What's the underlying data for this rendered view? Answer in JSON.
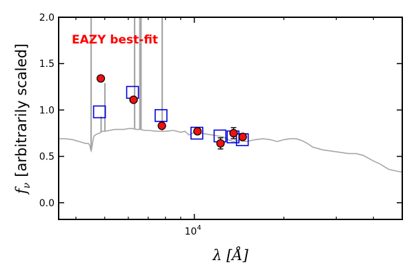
{
  "chart_data": {
    "type": "scatter",
    "annotation": "EAZY best-fit",
    "annotation_color": "#ff0000",
    "xlabel_symbol": "λ",
    "xlabel_unit": "[Å]",
    "ylabel_symbol": "f",
    "ylabel_subscript": "ν",
    "ylabel_text": "[arbitrarily scaled]",
    "xscale": "log",
    "xlim": [
      3500,
      50000
    ],
    "ylim": [
      -0.18,
      2.0
    ],
    "yticks": [
      0.0,
      0.5,
      1.0,
      1.5,
      2.0
    ],
    "ytick_labels": [
      "0.0",
      "0.5",
      "1.0",
      "1.5",
      "2.0"
    ],
    "xtick_major": [
      10000
    ],
    "xtick_major_label_base": "10",
    "xtick_major_label_exp": "4",
    "xtick_minor": [
      4000,
      5000,
      6000,
      7000,
      8000,
      9000,
      20000,
      30000,
      40000
    ],
    "grid": false,
    "model_color": "#a6a6a6",
    "model_continuum": [
      [
        3500,
        0.69
      ],
      [
        3700,
        0.69
      ],
      [
        3900,
        0.68
      ],
      [
        4000,
        0.67
      ],
      [
        4100,
        0.66
      ],
      [
        4200,
        0.65
      ],
      [
        4300,
        0.64
      ],
      [
        4400,
        0.64
      ],
      [
        4450,
        0.62
      ],
      [
        4480,
        0.58
      ],
      [
        4500,
        0.56
      ],
      [
        4530,
        0.6
      ],
      [
        4560,
        0.66
      ],
      [
        4600,
        0.72
      ],
      [
        4700,
        0.74
      ],
      [
        4800,
        0.75
      ],
      [
        4900,
        0.77
      ],
      [
        5000,
        0.77
      ],
      [
        5200,
        0.78
      ],
      [
        5400,
        0.79
      ],
      [
        5600,
        0.79
      ],
      [
        5800,
        0.79
      ],
      [
        6000,
        0.8
      ],
      [
        6200,
        0.8
      ],
      [
        6400,
        0.79
      ],
      [
        6600,
        0.79
      ],
      [
        6800,
        0.78
      ],
      [
        7000,
        0.78
      ],
      [
        7500,
        0.77
      ],
      [
        8000,
        0.77
      ],
      [
        8500,
        0.78
      ],
      [
        9000,
        0.76
      ],
      [
        9300,
        0.77
      ],
      [
        9600,
        0.73
      ],
      [
        10000,
        0.76
      ],
      [
        10500,
        0.75
      ],
      [
        11000,
        0.74
      ],
      [
        12000,
        0.72
      ],
      [
        12500,
        0.71
      ],
      [
        13000,
        0.68
      ],
      [
        13500,
        0.66
      ],
      [
        14000,
        0.67
      ],
      [
        15000,
        0.66
      ],
      [
        16000,
        0.68
      ],
      [
        17000,
        0.69
      ],
      [
        18000,
        0.68
      ],
      [
        19000,
        0.66
      ],
      [
        20000,
        0.68
      ],
      [
        21000,
        0.69
      ],
      [
        22000,
        0.69
      ],
      [
        23000,
        0.67
      ],
      [
        24000,
        0.64
      ],
      [
        25000,
        0.6
      ],
      [
        27000,
        0.57
      ],
      [
        30000,
        0.55
      ],
      [
        33000,
        0.53
      ],
      [
        35000,
        0.53
      ],
      [
        37000,
        0.51
      ],
      [
        40000,
        0.45
      ],
      [
        42000,
        0.42
      ],
      [
        45000,
        0.36
      ],
      [
        48000,
        0.34
      ],
      [
        50000,
        0.33
      ]
    ],
    "model_lines": [
      {
        "x": 4500,
        "y": 2.0
      },
      {
        "x": 4861,
        "y": 0.93
      },
      {
        "x": 5007,
        "y": 1.29
      },
      {
        "x": 6300,
        "y": 2.0
      },
      {
        "x": 6563,
        "y": 2.0
      },
      {
        "x": 6620,
        "y": 2.0
      },
      {
        "x": 7800,
        "y": 2.0
      }
    ],
    "series": [
      {
        "marker": "open-square",
        "color": "#0000dd",
        "points": [
          [
            4800,
            0.98
          ],
          [
            6200,
            1.19
          ],
          [
            7730,
            0.94
          ],
          [
            10200,
            0.75
          ],
          [
            12200,
            0.72
          ],
          [
            13500,
            0.71
          ],
          [
            14500,
            0.68
          ]
        ]
      },
      {
        "marker": "filled-circle",
        "color": "#ee1111",
        "points": [
          {
            "x": 4850,
            "y": 1.34,
            "err": 0.02
          },
          {
            "x": 6250,
            "y": 1.11,
            "err": 0.02
          },
          {
            "x": 7780,
            "y": 0.83,
            "err": 0.02
          },
          {
            "x": 10250,
            "y": 0.77,
            "err": 0.02
          },
          {
            "x": 12250,
            "y": 0.64,
            "err": 0.06
          },
          {
            "x": 13550,
            "y": 0.75,
            "err": 0.06
          },
          {
            "x": 14550,
            "y": 0.71,
            "err": 0.02
          }
        ]
      }
    ]
  }
}
